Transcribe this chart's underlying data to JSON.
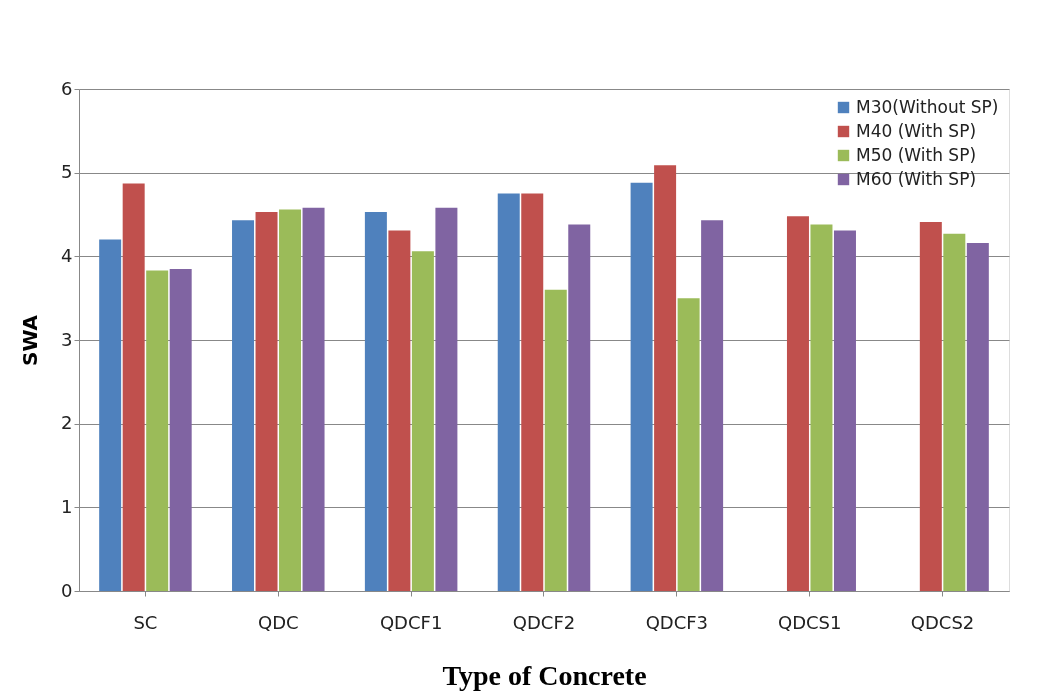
{
  "chart_data": {
    "type": "bar",
    "xlabel": "Type of Concrete",
    "ylabel": "SWA",
    "categories": [
      "SC",
      "QDC",
      "QDCF1",
      "QDCF2",
      "QDCF3",
      "QDCS1",
      "QDCS2"
    ],
    "series": [
      {
        "name": "M30(Without SP)",
        "color": "#4f81bd",
        "values": [
          4.2,
          4.43,
          4.53,
          4.75,
          4.88,
          null,
          null
        ]
      },
      {
        "name": "M40 (With SP)",
        "color": "#c0504d",
        "values": [
          4.87,
          4.53,
          4.31,
          4.75,
          5.09,
          4.48,
          4.41
        ]
      },
      {
        "name": "M50 (With SP)",
        "color": "#9bbb59",
        "values": [
          3.83,
          4.56,
          4.06,
          3.6,
          3.5,
          4.38,
          4.27
        ]
      },
      {
        "name": "M60 (With SP)",
        "color": "#8064a2",
        "values": [
          3.85,
          4.58,
          4.58,
          4.38,
          4.43,
          4.31,
          4.16
        ]
      }
    ],
    "ylim": [
      0,
      6
    ],
    "yticks": [
      0,
      1,
      2,
      3,
      4,
      5,
      6
    ],
    "grid": "y",
    "legend": "top right"
  }
}
